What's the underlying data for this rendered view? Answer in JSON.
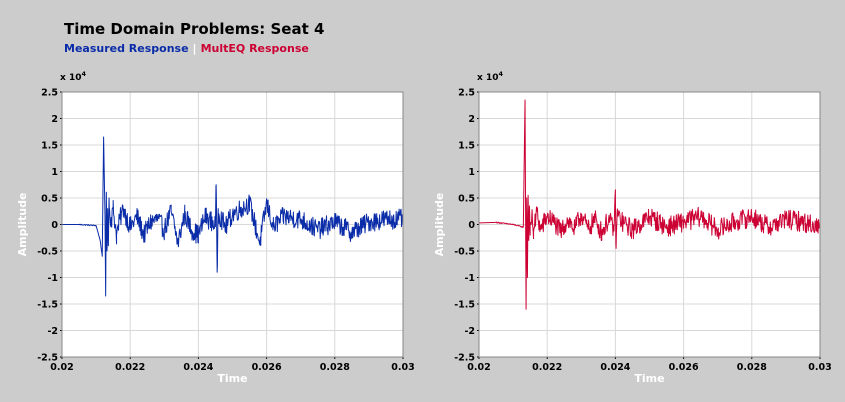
{
  "title": "Time Domain Problems: Seat 4",
  "legend": {
    "measured_label": "Measured Response",
    "separator": "|",
    "multeq_label": "MultEQ Response"
  },
  "colors": {
    "measured": "#0a2ca8",
    "multeq": "#cc0033",
    "background": "#cccccc",
    "plot_bg": "#ffffff",
    "grid": "#d8d8d8"
  },
  "chart_data": [
    {
      "type": "line",
      "xlabel": "Time",
      "ylabel": "Amplitude",
      "y_multiplier_base": "x 10",
      "y_multiplier_exp": "4",
      "xlim": [
        0.02,
        0.03
      ],
      "ylim": [
        -2.5,
        2.5
      ],
      "x_ticks": [
        "0.02",
        "0.022",
        "0.024",
        "0.026",
        "0.028",
        "0.03"
      ],
      "y_ticks": [
        "2.5",
        "2",
        "1.5",
        "1",
        "0.5",
        "0",
        "-0.5",
        "-1",
        "-1.5",
        "-2",
        "-2.5"
      ],
      "grid": true,
      "series": [
        {
          "color": "#0a2ca8",
          "x": [
            0.02,
            0.0205,
            0.021,
            0.02112,
            0.02118,
            0.02122,
            0.02126,
            0.02128,
            0.0213,
            0.02132,
            0.02134,
            0.02136,
            0.02138,
            0.0214,
            0.02145,
            0.0215,
            0.0216,
            0.0217,
            0.0218,
            0.022,
            0.0222,
            0.0224,
            0.0226,
            0.0228,
            0.023,
            0.0232,
            0.0234,
            0.0236,
            0.0238,
            0.024,
            0.0242,
            0.0244,
            0.0245,
            0.02452,
            0.02455,
            0.02458,
            0.0246,
            0.0248,
            0.025,
            0.0255,
            0.0258,
            0.026,
            0.0262,
            0.0265,
            0.027,
            0.0275,
            0.028,
            0.0285,
            0.029,
            0.0295,
            0.03
          ],
          "y": [
            0.0,
            0.0,
            -0.02,
            -0.3,
            -0.6,
            1.65,
            0.2,
            -1.35,
            0.6,
            -0.5,
            0.3,
            -0.4,
            0.5,
            0.2,
            0.1,
            0.3,
            -0.2,
            0.1,
            0.3,
            -0.05,
            0.15,
            -0.2,
            0.05,
            0.1,
            -0.1,
            0.25,
            -0.35,
            0.2,
            -0.1,
            -0.2,
            0.15,
            0.05,
            0.0,
            0.75,
            -0.9,
            0.3,
            0.2,
            -0.05,
            0.2,
            0.4,
            -0.35,
            0.4,
            -0.05,
            0.15,
            0.1,
            -0.1,
            0.05,
            -0.15,
            0.05,
            0.1,
            0.1
          ]
        }
      ]
    },
    {
      "type": "line",
      "xlabel": "Time",
      "ylabel": "Amplitude",
      "y_multiplier_base": "x 10",
      "y_multiplier_exp": "4",
      "xlim": [
        0.02,
        0.03
      ],
      "ylim": [
        -2.5,
        2.5
      ],
      "x_ticks": [
        "0.02",
        "0.022",
        "0.024",
        "0.026",
        "0.028",
        "0.03"
      ],
      "y_ticks": [
        "2.5",
        "2",
        "1.5",
        "1",
        "0.5",
        "0",
        "-0.5",
        "-1",
        "-1.5",
        "-2",
        "-2.5"
      ],
      "grid": true,
      "series": [
        {
          "color": "#cc0033",
          "x": [
            0.02,
            0.0205,
            0.021,
            0.0213,
            0.02135,
            0.02138,
            0.0214,
            0.02142,
            0.02144,
            0.02146,
            0.02148,
            0.0215,
            0.02155,
            0.0216,
            0.0217,
            0.0218,
            0.022,
            0.0222,
            0.0224,
            0.0226,
            0.0228,
            0.023,
            0.0232,
            0.0234,
            0.0236,
            0.0238,
            0.02395,
            0.024,
            0.02402,
            0.02405,
            0.0242,
            0.0245,
            0.025,
            0.0255,
            0.026,
            0.0265,
            0.027,
            0.0275,
            0.028,
            0.0285,
            0.029,
            0.0295,
            0.03
          ],
          "y": [
            0.03,
            0.04,
            0.0,
            -0.05,
            2.35,
            -1.6,
            0.5,
            -1.0,
            0.55,
            -0.3,
            0.35,
            -0.2,
            0.2,
            -0.15,
            0.25,
            -0.1,
            0.15,
            0.05,
            -0.15,
            0.1,
            -0.1,
            0.2,
            -0.1,
            0.1,
            -0.15,
            0.1,
            -0.1,
            0.5,
            -0.45,
            0.2,
            0.05,
            -0.1,
            0.15,
            -0.05,
            0.05,
            0.15,
            -0.1,
            0.05,
            0.15,
            -0.05,
            0.1,
            0.05,
            -0.05
          ]
        }
      ]
    }
  ]
}
